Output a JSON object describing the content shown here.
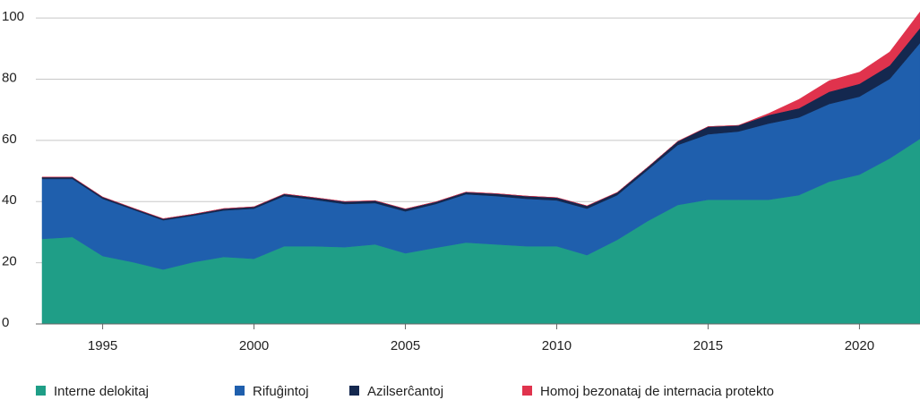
{
  "chart_data": {
    "type": "stacked_area",
    "x": [
      1993,
      1994,
      1995,
      1996,
      1997,
      1998,
      1999,
      2000,
      2001,
      2002,
      2003,
      2004,
      2005,
      2006,
      2007,
      2008,
      2009,
      2010,
      2011,
      2012,
      2013,
      2014,
      2015,
      2016,
      2017,
      2018,
      2019,
      2020,
      2021,
      2022
    ],
    "series": [
      {
        "name": "Interne delokitaj",
        "color": "#1f9e87",
        "values": [
          27.8,
          28.4,
          22.2,
          20.2,
          17.8,
          20.2,
          21.9,
          21.3,
          25.4,
          25.4,
          25.1,
          26.0,
          23.1,
          24.9,
          26.6,
          26.0,
          25.4,
          25.4,
          22.5,
          27.5,
          33.6,
          38.9,
          40.6,
          40.6,
          40.6,
          42.1,
          46.5,
          48.8,
          54.1,
          60.5
        ]
      },
      {
        "name": "Rifuĝintoj",
        "color": "#1f5fad",
        "values": [
          19.6,
          19.0,
          18.7,
          17.2,
          16.1,
          15.2,
          15.2,
          16.4,
          16.4,
          15.2,
          14.1,
          13.5,
          13.7,
          14.3,
          15.8,
          15.8,
          15.5,
          15.0,
          15.2,
          14.6,
          16.7,
          19.6,
          21.4,
          22.3,
          24.9,
          25.4,
          25.4,
          25.5,
          26.0,
          31.3
        ]
      },
      {
        "name": "Azilserĉantoj",
        "color": "#14284f",
        "values": [
          0.6,
          0.6,
          0.6,
          0.5,
          0.5,
          0.5,
          0.6,
          0.6,
          0.7,
          0.7,
          0.8,
          0.8,
          0.8,
          0.7,
          0.7,
          0.8,
          0.9,
          0.9,
          0.9,
          0.9,
          0.9,
          1.2,
          2.5,
          2.0,
          2.8,
          3.0,
          4.0,
          4.2,
          4.4,
          4.9
        ]
      },
      {
        "name": "Homoj bezonataj de internacia protekto",
        "color": "#e0334d",
        "values": [
          0,
          0,
          0,
          0,
          0,
          0,
          0,
          0,
          0,
          0,
          0,
          0,
          0,
          0,
          0,
          0,
          0,
          0,
          0,
          0,
          0,
          0,
          0,
          0,
          0.5,
          2.9,
          3.6,
          3.8,
          4.4,
          5.3
        ]
      }
    ],
    "xlim": [
      1993,
      2022
    ],
    "xticks": [
      1995,
      2000,
      2005,
      2010,
      2015,
      2020
    ],
    "ylim": [
      0,
      105
    ],
    "yticks": [
      0,
      20,
      40,
      60,
      80,
      100
    ],
    "grid": true,
    "legend": "bottom"
  }
}
